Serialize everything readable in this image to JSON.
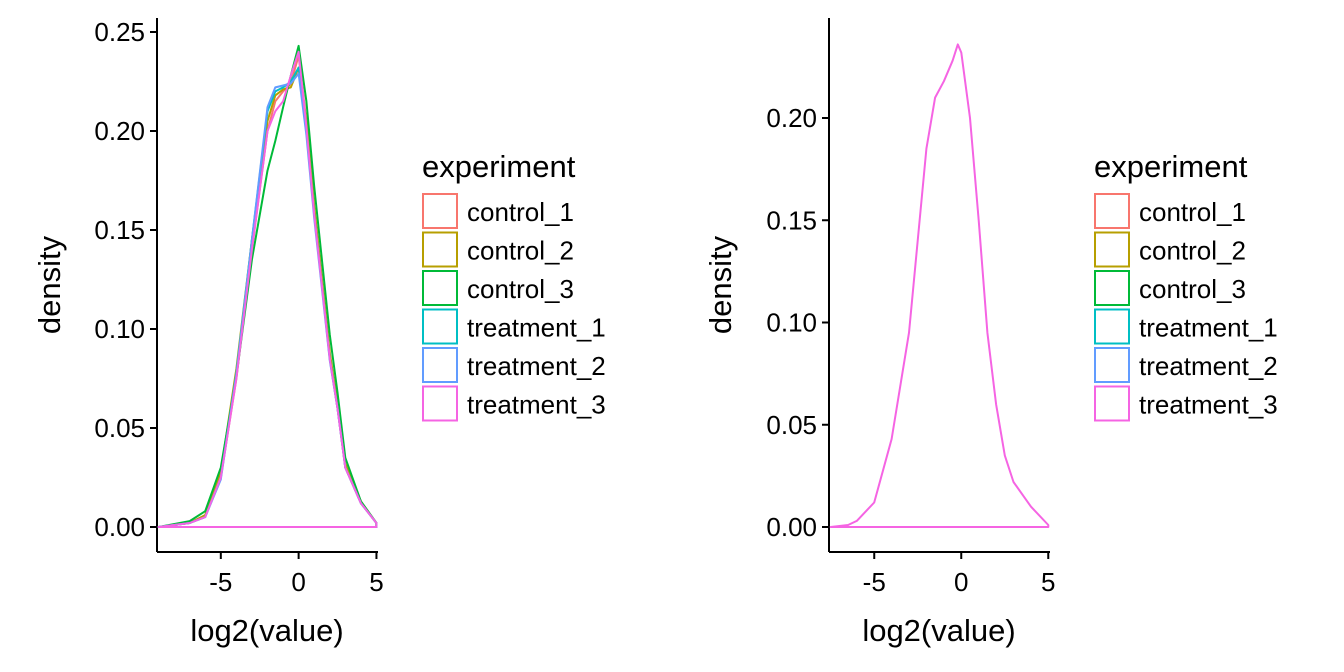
{
  "chart_data": [
    {
      "type": "line",
      "subtype": "density",
      "xlabel": "log2(value)",
      "ylabel": "density",
      "xlim": [
        -9.1,
        5.1
      ],
      "ylim": [
        0,
        0.25
      ],
      "xticks": [
        -5,
        0,
        5
      ],
      "xtick_labels": [
        "-5",
        "0",
        "5"
      ],
      "yticks": [
        0,
        0.05,
        0.1,
        0.15,
        0.2,
        0.25
      ],
      "ytick_labels": [
        "0.00",
        "0.05",
        "0.10",
        "0.15",
        "0.20",
        "0.25"
      ],
      "grid": false,
      "legend": {
        "title": "experiment",
        "position": "right",
        "entries": [
          "control_1",
          "control_2",
          "control_3",
          "treatment_1",
          "treatment_2",
          "treatment_3"
        ]
      },
      "series": [
        {
          "name": "control_1",
          "color": "#F8766D",
          "x": [
            -9,
            -7,
            -6,
            -5,
            -4,
            -3,
            -2,
            -1.5,
            -1,
            -0.5,
            0,
            0.5,
            1,
            2,
            2.5,
            3,
            4,
            5
          ],
          "y": [
            0,
            0.002,
            0.006,
            0.025,
            0.075,
            0.14,
            0.2,
            0.215,
            0.22,
            0.224,
            0.238,
            0.205,
            0.16,
            0.085,
            0.06,
            0.03,
            0.012,
            0.002
          ]
        },
        {
          "name": "control_2",
          "color": "#B79F00",
          "x": [
            -9,
            -7,
            -6,
            -5,
            -4,
            -3,
            -2,
            -1.5,
            -1,
            -0.5,
            0,
            0.5,
            1,
            2,
            2.5,
            3,
            4,
            5
          ],
          "y": [
            0,
            0.002,
            0.006,
            0.028,
            0.08,
            0.145,
            0.205,
            0.218,
            0.221,
            0.222,
            0.232,
            0.205,
            0.162,
            0.088,
            0.062,
            0.032,
            0.013,
            0.002
          ]
        },
        {
          "name": "control_3",
          "color": "#00BA38",
          "x": [
            -9,
            -7,
            -6,
            -5,
            -4,
            -3,
            -2,
            -1.5,
            -1,
            -0.5,
            0,
            0.5,
            1,
            2,
            2.5,
            3,
            4,
            5
          ],
          "y": [
            0,
            0.003,
            0.008,
            0.03,
            0.076,
            0.135,
            0.18,
            0.195,
            0.212,
            0.228,
            0.243,
            0.215,
            0.172,
            0.097,
            0.068,
            0.035,
            0.013,
            0.002
          ]
        },
        {
          "name": "treatment_1",
          "color": "#00BFC4",
          "x": [
            -9,
            -7,
            -6,
            -5,
            -4,
            -3,
            -2,
            -1.5,
            -1,
            -0.5,
            0,
            0.5,
            1,
            2,
            2.5,
            3,
            4,
            5
          ],
          "y": [
            0,
            0.002,
            0.005,
            0.025,
            0.078,
            0.145,
            0.21,
            0.22,
            0.222,
            0.225,
            0.232,
            0.2,
            0.158,
            0.085,
            0.06,
            0.03,
            0.012,
            0.002
          ]
        },
        {
          "name": "treatment_2",
          "color": "#619CFF",
          "x": [
            -9,
            -7,
            -6,
            -5,
            -4,
            -3,
            -2,
            -1.5,
            -1,
            -0.5,
            0,
            0.5,
            1,
            2,
            2.5,
            3,
            4,
            5
          ],
          "y": [
            0,
            0.002,
            0.005,
            0.024,
            0.077,
            0.145,
            0.212,
            0.222,
            0.223,
            0.224,
            0.229,
            0.198,
            0.156,
            0.084,
            0.06,
            0.03,
            0.012,
            0.002
          ]
        },
        {
          "name": "treatment_3",
          "color": "#F564E3",
          "x": [
            -9,
            -7,
            -6,
            -5,
            -4,
            -3,
            -2,
            -1.5,
            -1,
            -0.5,
            0,
            0.5,
            1,
            2,
            2.5,
            3,
            4,
            5
          ],
          "y": [
            0,
            0.002,
            0.005,
            0.025,
            0.075,
            0.14,
            0.2,
            0.21,
            0.215,
            0.228,
            0.24,
            0.202,
            0.158,
            0.085,
            0.06,
            0.03,
            0.012,
            0.002
          ]
        }
      ]
    },
    {
      "type": "line",
      "subtype": "density",
      "xlabel": "log2(value)",
      "ylabel": "density",
      "xlim": [
        -7.6,
        5.1
      ],
      "ylim": [
        0,
        0.24
      ],
      "xticks": [
        -5,
        0,
        5
      ],
      "xtick_labels": [
        "-5",
        "0",
        "5"
      ],
      "yticks": [
        0,
        0.05,
        0.1,
        0.15,
        0.2
      ],
      "ytick_labels": [
        "0.00",
        "0.05",
        "0.10",
        "0.15",
        "0.20"
      ],
      "grid": false,
      "legend": {
        "title": "experiment",
        "position": "right",
        "entries": [
          "control_1",
          "control_2",
          "control_3",
          "treatment_1",
          "treatment_2",
          "treatment_3"
        ]
      },
      "series": [
        {
          "name": "treatment_3",
          "color": "#F564E3",
          "x": [
            -7.5,
            -6.5,
            -6,
            -5,
            -4,
            -3,
            -2.5,
            -2,
            -1.5,
            -1,
            -0.5,
            -0.2,
            0,
            0.5,
            1,
            1.5,
            2,
            2.5,
            3,
            4,
            5
          ],
          "y": [
            0,
            0.001,
            0.003,
            0.012,
            0.043,
            0.095,
            0.14,
            0.185,
            0.21,
            0.218,
            0.228,
            0.236,
            0.232,
            0.2,
            0.15,
            0.095,
            0.06,
            0.035,
            0.022,
            0.01,
            0.001
          ]
        }
      ]
    }
  ]
}
